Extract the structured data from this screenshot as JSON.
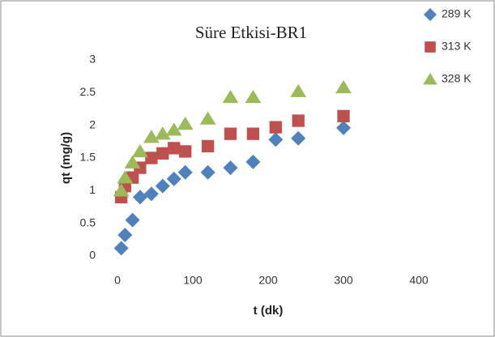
{
  "chart_data": {
    "type": "scatter",
    "title": "Süre Etkisi-BR1",
    "xlabel": "t (dk)",
    "ylabel": "qt (mg/g)",
    "xlim": [
      0,
      400
    ],
    "xticks": [
      0,
      100,
      200,
      300,
      400
    ],
    "ylim": [
      0,
      3
    ],
    "yticks": [
      0,
      0.5,
      1,
      1.5,
      2,
      2.5,
      3
    ],
    "series": [
      {
        "name": "289 K",
        "color": "#4f81bd",
        "marker": "diamond",
        "x": [
          5,
          10,
          20,
          30,
          45,
          60,
          75,
          90,
          120,
          150,
          180,
          210,
          240,
          300
        ],
        "values": [
          0.12,
          0.32,
          0.55,
          0.9,
          0.95,
          1.07,
          1.18,
          1.28,
          1.28,
          1.35,
          1.44,
          1.78,
          1.8,
          1.96
        ]
      },
      {
        "name": "313 K",
        "color": "#c0504d",
        "marker": "square",
        "x": [
          5,
          10,
          20,
          30,
          45,
          60,
          75,
          90,
          120,
          150,
          180,
          210,
          240,
          300
        ],
        "values": [
          0.9,
          1.07,
          1.2,
          1.35,
          1.5,
          1.57,
          1.65,
          1.6,
          1.68,
          1.87,
          1.87,
          1.97,
          2.07,
          2.14
        ]
      },
      {
        "name": "328 K",
        "color": "#9bbb59",
        "marker": "triangle",
        "x": [
          5,
          10,
          20,
          30,
          45,
          60,
          75,
          90,
          120,
          150,
          180,
          240,
          300
        ],
        "values": [
          1.0,
          1.2,
          1.43,
          1.6,
          1.82,
          1.87,
          1.93,
          2.02,
          2.1,
          2.43,
          2.43,
          2.52,
          2.58
        ]
      }
    ]
  }
}
